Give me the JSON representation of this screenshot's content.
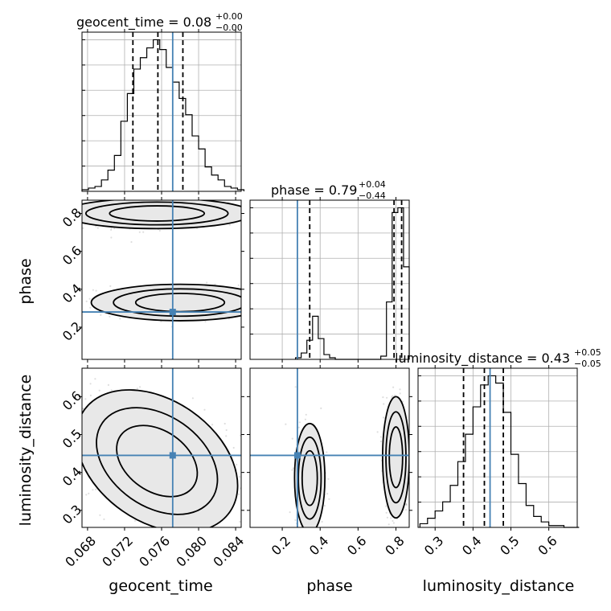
{
  "chart_data": {
    "type": "corner",
    "parameters": [
      {
        "name": "geocent_time",
        "xlabel": "geocent_time",
        "ylabel": "",
        "range": [
          0.0674,
          0.0846
        ],
        "ticks": [
          0.068,
          0.072,
          0.076,
          0.08,
          0.084
        ],
        "tick_labels": [
          "0.068",
          "0.072",
          "0.076",
          "0.080",
          "0.084"
        ],
        "truth": 0.0772,
        "quantiles": [
          0.0729,
          0.0756,
          0.0783
        ],
        "title_main": "geocent_time = 0.08",
        "title_sup": "+0.00",
        "title_sub": "−0.00",
        "hist": {
          "edges": [
            0.0674,
            0.0681,
            0.0688,
            0.0695,
            0.0702,
            0.0709,
            0.0716,
            0.0723,
            0.073,
            0.0737,
            0.0744,
            0.0751,
            0.0758,
            0.0765,
            0.0772,
            0.0779,
            0.0786,
            0.0793,
            0.08,
            0.0807,
            0.0814,
            0.0821,
            0.0828,
            0.0835,
            0.0842,
            0.0849
          ],
          "values": [
            0.01,
            0.02,
            0.03,
            0.07,
            0.13,
            0.22,
            0.43,
            0.6,
            0.75,
            0.82,
            0.88,
            0.93,
            0.87,
            0.76,
            0.67,
            0.57,
            0.47,
            0.34,
            0.26,
            0.15,
            0.1,
            0.07,
            0.03,
            0.02,
            0.01
          ]
        }
      },
      {
        "name": "phase",
        "xlabel": "phase",
        "ylabel": "phase",
        "range": [
          0.03,
          0.87
        ],
        "ticks": [
          0.2,
          0.4,
          0.6,
          0.8
        ],
        "tick_labels": [
          "0.2",
          "0.4",
          "0.6",
          "0.8"
        ],
        "truth": 0.28,
        "quantiles": [
          0.345,
          0.79,
          0.83
        ],
        "title_main": "phase = 0.79",
        "title_sup": "+0.04",
        "title_sub": "−0.44",
        "hist": {
          "edges": [
            0.27,
            0.3,
            0.33,
            0.36,
            0.39,
            0.42,
            0.45,
            0.48,
            0.51,
            0.54,
            0.57,
            0.6,
            0.63,
            0.66,
            0.69,
            0.72,
            0.75,
            0.78,
            0.81,
            0.84,
            0.87
          ],
          "values": [
            0.01,
            0.04,
            0.12,
            0.27,
            0.13,
            0.03,
            0.01,
            0,
            0,
            0,
            0,
            0,
            0,
            0,
            0,
            0.02,
            0.36,
            0.92,
            0.95,
            0.58
          ]
        }
      },
      {
        "name": "luminosity_distance",
        "xlabel": "luminosity_distance",
        "ylabel": "luminosity_distance",
        "range": [
          0.255,
          0.675
        ],
        "ticks": [
          0.3,
          0.4,
          0.5,
          0.6
        ],
        "tick_labels": [
          "0.3",
          "0.4",
          "0.5",
          "0.6"
        ],
        "truth": 0.445,
        "quantiles": [
          0.375,
          0.43,
          0.48
        ],
        "title_main": "luminosity_distance = 0.43",
        "title_sup": "+0.05",
        "title_sub": "−0.05",
        "hist": {
          "edges": [
            0.26,
            0.28,
            0.3,
            0.32,
            0.34,
            0.36,
            0.38,
            0.4,
            0.42,
            0.44,
            0.46,
            0.48,
            0.5,
            0.52,
            0.54,
            0.56,
            0.58,
            0.6,
            0.62,
            0.64,
            0.66,
            0.68
          ],
          "values": [
            0.02,
            0.05,
            0.09,
            0.14,
            0.23,
            0.36,
            0.51,
            0.66,
            0.78,
            0.83,
            0.79,
            0.63,
            0.4,
            0.24,
            0.12,
            0.06,
            0.03,
            0.01,
            0.01,
            0,
            0
          ]
        }
      }
    ],
    "pairs": [
      {
        "x": "geocent_time",
        "y": "phase",
        "modes": [
          {
            "cx": 0.0755,
            "cy": 0.8,
            "sx": 0.0032,
            "sy": 0.025,
            "rho": 0,
            "weight": 0.62
          },
          {
            "cx": 0.078,
            "cy": 0.33,
            "sx": 0.003,
            "sy": 0.03,
            "rho": 0,
            "weight": 0.38
          }
        ]
      },
      {
        "x": "geocent_time",
        "y": "luminosity_distance",
        "modes": [
          {
            "cx": 0.0755,
            "cy": 0.43,
            "sx": 0.003,
            "sy": 0.05,
            "rho": -0.45,
            "weight": 1.0
          }
        ]
      },
      {
        "x": "phase",
        "y": "luminosity_distance",
        "modes": [
          {
            "cx": 0.345,
            "cy": 0.385,
            "sx": 0.025,
            "sy": 0.045,
            "rho": 0,
            "weight": 0.38
          },
          {
            "cx": 0.8,
            "cy": 0.44,
            "sx": 0.022,
            "sy": 0.05,
            "rho": 0,
            "weight": 0.62
          }
        ]
      }
    ],
    "quantile_levels": [
      0.16,
      0.5,
      0.84
    ],
    "contour_levels_sigma": [
      0.5,
      1.0,
      1.5,
      2.0
    ],
    "truth_color": "#4682b4",
    "grid": true
  }
}
